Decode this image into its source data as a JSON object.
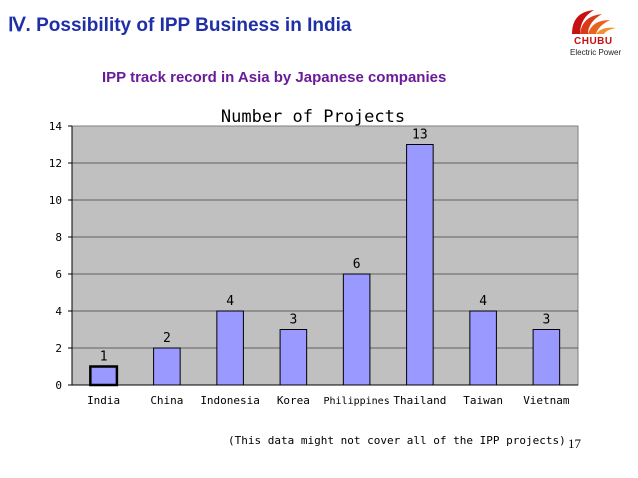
{
  "slide": {
    "title": "Ⅳ. Possibility of IPP Business in India",
    "subtitle": "IPP  track record in Asia by Japanese companies",
    "footnote": "(This data might not cover all of the IPP projects)",
    "page_number": "17",
    "logo_text": "CHUBU",
    "logo_subtext": "Electric Power"
  },
  "colors": {
    "title": "#1f2fa8",
    "subtitle": "#6a1b9a",
    "bar_fill": "#9999ff",
    "plot_bg": "#c0c0c0",
    "logo_red": "#c81010"
  },
  "chart_data": {
    "type": "bar",
    "title": "Number of Projects",
    "categories": [
      "India",
      "China",
      "Indonesia",
      "Korea",
      "Philippines",
      "Thailand",
      "Taiwan",
      "Vietnam"
    ],
    "values": [
      1,
      2,
      4,
      3,
      6,
      13,
      4,
      3
    ],
    "ylim": [
      0,
      14
    ],
    "yticks": [
      0,
      2,
      4,
      6,
      8,
      10,
      12,
      14
    ],
    "grid": true,
    "legend": "none",
    "highlighted_category": "India"
  }
}
